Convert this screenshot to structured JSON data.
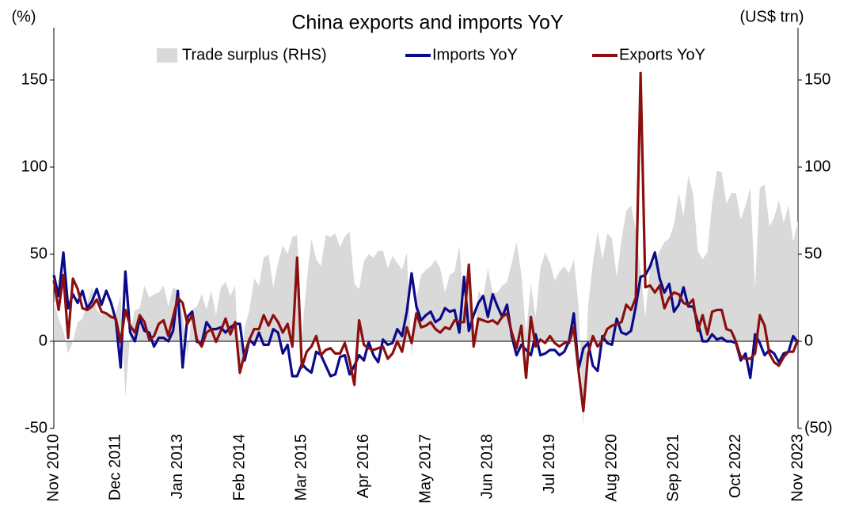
{
  "chart_data": {
    "type": "line",
    "title": "China exports and imports YoY",
    "y_label": "(%)",
    "y2_label": "(US$ trn)",
    "categories": [
      "Nov 2010",
      null,
      null,
      null,
      null,
      null,
      null,
      null,
      null,
      null,
      null,
      null,
      null,
      "Dec 2011",
      null,
      null,
      null,
      null,
      null,
      null,
      null,
      null,
      null,
      null,
      null,
      null,
      "Jan 2013",
      null,
      null,
      null,
      null,
      null,
      null,
      null,
      null,
      null,
      null,
      null,
      null,
      "Feb 2014",
      null,
      null,
      null,
      null,
      null,
      null,
      null,
      null,
      null,
      null,
      null,
      null,
      "Mar 2015",
      null,
      null,
      null,
      null,
      null,
      null,
      null,
      null,
      null,
      null,
      null,
      null,
      "Apr 2016",
      null,
      null,
      null,
      null,
      null,
      null,
      null,
      null,
      null,
      null,
      null,
      null,
      "May 2017",
      null,
      null,
      null,
      null,
      null,
      null,
      null,
      null,
      null,
      null,
      null,
      null,
      "Jun 2018",
      null,
      null,
      null,
      null,
      null,
      null,
      null,
      null,
      null,
      null,
      null,
      null,
      "Jul 2019",
      null,
      null,
      null,
      null,
      null,
      null,
      null,
      null,
      null,
      null,
      null,
      null,
      "Aug 2020",
      null,
      null,
      null,
      null,
      null,
      null,
      null,
      null,
      null,
      null,
      null,
      null,
      "Sep 2021",
      null,
      null,
      null,
      null,
      null,
      null,
      null,
      null,
      null,
      null,
      null,
      null,
      "Oct 2022",
      null,
      null,
      null,
      null,
      null,
      null,
      null,
      null,
      null,
      null,
      null,
      null,
      "Nov 2023"
    ],
    "series": [
      {
        "name": "Trade surplus (RHS)",
        "color": "#d9d9d9",
        "kind": "area",
        "axis": "y2",
        "values": [
          23,
          13,
          6,
          -7,
          0,
          11,
          13,
          22,
          31,
          18,
          15,
          17,
          15,
          16,
          27,
          -32,
          5,
          18,
          19,
          32,
          25,
          27,
          28,
          32,
          20,
          31,
          29,
          15,
          -9,
          18,
          20,
          27,
          18,
          29,
          15,
          31,
          34,
          26,
          32,
          -23,
          8,
          18,
          36,
          32,
          48,
          50,
          31,
          45,
          55,
          50,
          60,
          61,
          3,
          34,
          59,
          47,
          43,
          61,
          60,
          62,
          54,
          60,
          63,
          33,
          30,
          46,
          50,
          48,
          52,
          52,
          42,
          49,
          45,
          41,
          51,
          -9,
          24,
          38,
          41,
          43,
          47,
          42,
          28,
          38,
          40,
          55,
          20,
          34,
          -5,
          29,
          25,
          42,
          28,
          28,
          32,
          34,
          45,
          57,
          39,
          4,
          33,
          14,
          42,
          51,
          45,
          35,
          40,
          43,
          39,
          47,
          20,
          -50,
          20,
          45,
          63,
          47,
          62,
          59,
          37,
          58,
          75,
          78,
          64,
          40,
          14,
          43,
          46,
          52,
          57,
          59,
          67,
          85,
          72,
          95,
          85,
          52,
          47,
          51,
          79,
          98,
          97,
          79,
          85,
          85,
          70,
          78,
          88,
          30,
          88,
          90,
          66,
          71,
          81,
          68,
          78,
          57,
          69
        ]
      },
      {
        "name": "Imports YoY",
        "color": "#0b0b8a",
        "kind": "line",
        "values": [
          38,
          26,
          51,
          19,
          27,
          22,
          29,
          19,
          23,
          30,
          21,
          29,
          22,
          12,
          -15,
          40,
          5,
          0,
          13,
          6,
          5,
          -3,
          2,
          2,
          0,
          6,
          29,
          -15,
          14,
          17,
          -0.3,
          -1,
          11,
          7,
          7,
          8,
          5,
          8,
          10,
          10,
          -11,
          1,
          -2,
          5,
          -2,
          -2,
          7,
          5,
          -7,
          -2,
          -20,
          -20,
          -13,
          -16,
          -18,
          -6,
          -8,
          -14,
          -20,
          -19,
          -9,
          -8,
          -19,
          -14,
          -8,
          -11,
          -0.4,
          -8,
          -12,
          1,
          -2,
          -1,
          7,
          3,
          17,
          39,
          20,
          12,
          15,
          17,
          11,
          13,
          19,
          17,
          18,
          5,
          37,
          6,
          15,
          22,
          26,
          14,
          27,
          20,
          14,
          21,
          3,
          -8,
          -2,
          -5,
          -8,
          4,
          -8,
          -7,
          -5,
          -5,
          -8,
          -6,
          0,
          16,
          -16,
          -4,
          -1,
          -14,
          -17,
          3,
          -1,
          -2,
          13,
          5,
          4,
          6,
          20,
          37,
          38,
          43,
          51,
          36,
          28,
          33,
          17,
          21,
          31,
          20,
          20,
          11,
          0,
          0,
          4,
          1,
          2,
          0,
          0,
          -1,
          -11,
          -7,
          -21,
          4,
          -1,
          -8,
          -5,
          -7,
          -12,
          -7,
          -6,
          3,
          -1
        ]
      },
      {
        "name": "Exports YoY",
        "color": "#8b0f0f",
        "kind": "line",
        "values": [
          35,
          18,
          38,
          2,
          36,
          30,
          19,
          18,
          20,
          24,
          17,
          16,
          14,
          13,
          -0.5,
          18,
          9,
          5,
          15,
          11,
          1,
          3,
          10,
          12,
          3,
          14,
          25,
          22,
          10,
          15,
          1,
          -3,
          5,
          7,
          -0.3,
          6,
          13,
          4,
          11,
          -18,
          -7,
          1,
          7,
          7,
          15,
          9,
          15,
          11,
          5,
          10,
          -3,
          48,
          -15,
          -6,
          -3,
          3,
          -8,
          -5,
          -4,
          -7,
          -7,
          -1,
          -11,
          -25,
          12,
          -2,
          -4,
          -5,
          -4,
          -3,
          -10,
          -7,
          0,
          -6,
          8,
          -1,
          16,
          8,
          9,
          11,
          7,
          5,
          8,
          7,
          12,
          11,
          11,
          44,
          -3,
          13,
          12,
          11,
          12,
          10,
          14,
          16,
          5,
          -4,
          9,
          -21,
          14,
          -3,
          1,
          -1,
          3,
          -1,
          -3,
          -1,
          -1,
          8,
          -17,
          -40,
          -7,
          3,
          -3,
          0.5,
          7,
          9,
          10,
          11,
          21,
          18,
          25,
          154,
          31,
          32,
          28,
          32,
          19,
          25,
          28,
          27,
          22,
          21,
          24,
          6,
          15,
          4,
          17,
          18,
          18,
          7,
          6,
          -0.3,
          -9,
          -10,
          -10,
          -7,
          15,
          9,
          -7,
          -12,
          -14,
          -9,
          -6,
          -6,
          1
        ]
      }
    ],
    "ylim": [
      -50,
      180
    ],
    "yticks": [
      -50,
      0,
      50,
      100,
      150
    ],
    "y2lim": [
      -50,
      180
    ],
    "y2ticks": [
      {
        "value": -50,
        "label": "(50)"
      },
      0,
      50,
      100,
      150
    ],
    "negative_tick_color": "#e00000",
    "zero_line": true
  }
}
